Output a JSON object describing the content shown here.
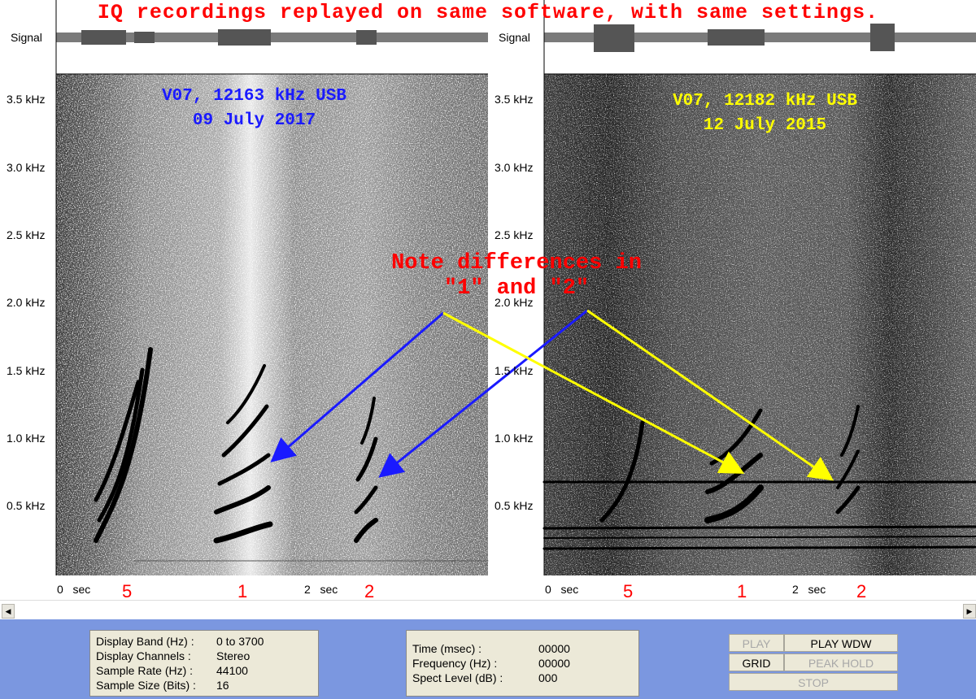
{
  "title": "IQ recordings replayed on same software, with same settings.",
  "signal_label": "Signal",
  "y_ticks": [
    "3.5 kHz",
    "3.0 kHz",
    "2.5 kHz",
    "2.0 kHz",
    "1.5 kHz",
    "1.0 kHz",
    "0.5 kHz"
  ],
  "x_ticks": {
    "start": "0   sec",
    "mid": "2   sec"
  },
  "left_panel": {
    "line1": "V07, 12163 kHz USB",
    "line2": "09 July 2017",
    "color": "#1a1aff"
  },
  "right_panel": {
    "line1": "V07, 12182 kHz USB",
    "line2": "12 July 2015",
    "color": "#ffff00"
  },
  "note": {
    "line1": "Note differences in",
    "line2": "\"1\" and \"2\""
  },
  "markers": [
    "5",
    "1",
    "2"
  ],
  "info": {
    "band_label": "Display Band (Hz) :",
    "band_value": "0 to 3700",
    "channels_label": "Display Channels :",
    "channels_value": "Stereo",
    "rate_label": "Sample Rate (Hz) :",
    "rate_value": "44100",
    "size_label": "Sample Size (Bits) :",
    "size_value": "16"
  },
  "readout": {
    "time_label": "Time (msec) :",
    "time_value": "00000",
    "freq_label": "Frequency (Hz) :",
    "freq_value": "00000",
    "level_label": "Spect Level (dB) :",
    "level_value": "000"
  },
  "buttons": {
    "play": "PLAY",
    "play_wdw": "PLAY WDW",
    "grid": "GRID",
    "peak_hold": "PEAK HOLD",
    "stop": "STOP"
  },
  "colors": {
    "arrow_blue": "#1a1aff",
    "arrow_yellow": "#ffff00",
    "panel": "#7b97e0",
    "note_red": "#ff0000"
  }
}
